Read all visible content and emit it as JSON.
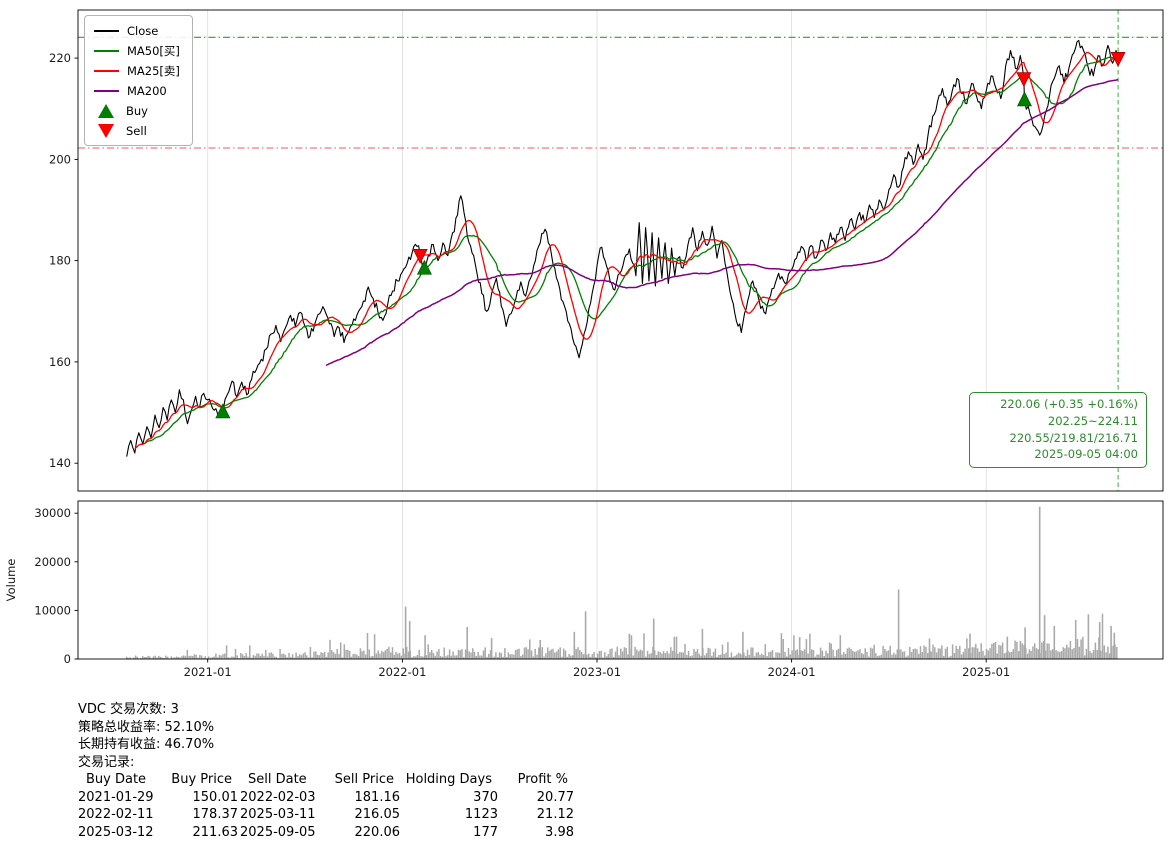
{
  "chart_data": {
    "type": "line",
    "x_unit": "months since 2021-01",
    "axes": {
      "xlim": [
        -8.0,
        58.9
      ],
      "price_ylim": [
        134.5,
        229.5
      ],
      "volume_ylim": [
        0,
        32500
      ],
      "x_ticks": [
        {
          "t": 0,
          "label": "2021-01"
        },
        {
          "t": 12,
          "label": "2022-01"
        },
        {
          "t": 24,
          "label": "2023-01"
        },
        {
          "t": 36,
          "label": "2024-01"
        },
        {
          "t": 48,
          "label": "2025-01"
        }
      ],
      "price_y_ticks": [
        140,
        160,
        180,
        200,
        220
      ],
      "volume_y_ticks": [
        0,
        10000,
        20000,
        30000
      ],
      "volume_ylabel": "Volume",
      "grid": "vertical-only",
      "legend_position": "upper-left"
    },
    "colors": {
      "close": "#000000",
      "ma50": "#008000",
      "ma25": "#ff0000",
      "ma200": "#800080",
      "buy": "#008000",
      "sell": "#ff0000",
      "grid": "#dcdcdc",
      "volume": "#a9a9a9",
      "hline_high": "#2ca02c",
      "hline_low": "#ff5555",
      "vline_last": "#44bb44",
      "annotation": "#2e8b2e"
    },
    "legend": {
      "items": [
        {
          "label": "Close",
          "type": "line",
          "color": "#000000",
          "icon": "close-line-icon"
        },
        {
          "label": "MA50[买]",
          "type": "line",
          "color": "#008000",
          "icon": "ma50-line-icon"
        },
        {
          "label": "MA25[卖]",
          "type": "line",
          "color": "#ff0000",
          "icon": "ma25-line-icon"
        },
        {
          "label": "MA200",
          "type": "line",
          "color": "#800080",
          "icon": "ma200-line-icon"
        },
        {
          "label": "Buy",
          "type": "marker-up",
          "color": "#008000",
          "icon": "buy-marker-icon"
        },
        {
          "label": "Sell",
          "type": "marker-down",
          "color": "#ff0000",
          "icon": "sell-marker-icon"
        }
      ]
    },
    "price": {
      "close_anchors": [
        [
          -5.0,
          141.3
        ],
        [
          -4.75,
          144.5
        ],
        [
          -4.5,
          142.0
        ],
        [
          -4.25,
          146.0
        ],
        [
          -4.0,
          143.8
        ],
        [
          -3.75,
          147.2
        ],
        [
          -3.5,
          145.0
        ],
        [
          -3.25,
          149.5
        ],
        [
          -3.0,
          147.0
        ],
        [
          -2.75,
          151.0
        ],
        [
          -2.5,
          148.5
        ],
        [
          -2.25,
          152.5
        ],
        [
          -2.0,
          150.0
        ],
        [
          -1.75,
          154.5
        ],
        [
          -1.5,
          152.5
        ],
        [
          -1.25,
          147.8
        ],
        [
          -1.0,
          150.5
        ],
        [
          -0.75,
          153.2
        ],
        [
          -0.5,
          151.0
        ],
        [
          -0.25,
          153.8
        ],
        [
          0.0,
          152.5
        ],
        [
          0.3,
          150.8
        ],
        [
          0.6,
          149.8
        ],
        [
          0.93,
          150.0
        ],
        [
          1.2,
          153.5
        ],
        [
          1.5,
          156.2
        ],
        [
          1.8,
          153.0
        ],
        [
          2.1,
          156.0
        ],
        [
          2.4,
          153.5
        ],
        [
          2.7,
          156.5
        ],
        [
          3.0,
          158.5
        ],
        [
          3.3,
          160.5
        ],
        [
          3.6,
          162.5
        ],
        [
          3.9,
          165.5
        ],
        [
          4.2,
          167.2
        ],
        [
          4.5,
          164.0
        ],
        [
          4.8,
          166.8
        ],
        [
          5.1,
          169.2
        ],
        [
          5.4,
          167.0
        ],
        [
          5.7,
          169.8
        ],
        [
          6.0,
          167.0
        ],
        [
          6.3,
          165.0
        ],
        [
          6.6,
          167.5
        ],
        [
          6.9,
          169.5
        ],
        [
          7.2,
          170.3
        ],
        [
          7.5,
          167.5
        ],
        [
          7.8,
          165.0
        ],
        [
          8.1,
          166.8
        ],
        [
          8.4,
          163.8
        ],
        [
          8.7,
          166.0
        ],
        [
          9.0,
          168.5
        ],
        [
          9.3,
          170.0
        ],
        [
          9.6,
          172.0
        ],
        [
          9.9,
          174.8
        ],
        [
          10.2,
          172.5
        ],
        [
          10.5,
          169.8
        ],
        [
          10.8,
          168.2
        ],
        [
          11.1,
          171.5
        ],
        [
          11.4,
          174.0
        ],
        [
          11.7,
          176.0
        ],
        [
          12.0,
          177.8
        ],
        [
          12.3,
          179.5
        ],
        [
          12.6,
          181.5
        ],
        [
          12.9,
          182.8
        ],
        [
          13.1,
          181.2
        ],
        [
          13.36,
          178.4
        ],
        [
          13.6,
          181.0
        ],
        [
          13.9,
          183.2
        ],
        [
          14.2,
          180.0
        ],
        [
          14.5,
          183.5
        ],
        [
          14.8,
          181.0
        ],
        [
          15.1,
          185.5
        ],
        [
          15.4,
          189.0
        ],
        [
          15.6,
          192.8
        ],
        [
          15.8,
          189.5
        ],
        [
          16.0,
          185.0
        ],
        [
          16.3,
          181.5
        ],
        [
          16.6,
          177.5
        ],
        [
          16.9,
          173.5
        ],
        [
          17.2,
          170.0
        ],
        [
          17.5,
          173.5
        ],
        [
          17.8,
          176.5
        ],
        [
          18.1,
          171.0
        ],
        [
          18.4,
          167.0
        ],
        [
          18.7,
          169.5
        ],
        [
          19.0,
          172.5
        ],
        [
          19.3,
          175.8
        ],
        [
          19.6,
          173.0
        ],
        [
          19.9,
          176.5
        ],
        [
          20.2,
          180.0
        ],
        [
          20.5,
          183.5
        ],
        [
          20.8,
          186.2
        ],
        [
          21.1,
          183.0
        ],
        [
          21.4,
          178.5
        ],
        [
          21.7,
          174.5
        ],
        [
          22.0,
          171.0
        ],
        [
          22.3,
          167.5
        ],
        [
          22.6,
          163.5
        ],
        [
          22.9,
          160.8
        ],
        [
          23.2,
          165.5
        ],
        [
          23.5,
          170.5
        ],
        [
          23.8,
          175.0
        ],
        [
          24.0,
          179.0
        ],
        [
          24.2,
          182.5
        ],
        [
          24.5,
          180.0
        ],
        [
          24.8,
          176.0
        ],
        [
          25.1,
          174.2
        ],
        [
          25.4,
          177.5
        ],
        [
          25.7,
          180.5
        ],
        [
          26.0,
          182.3
        ],
        [
          26.2,
          179.5
        ],
        [
          26.4,
          177.0
        ],
        [
          26.6,
          187.5
        ],
        [
          26.8,
          175.5
        ],
        [
          27.0,
          186.5
        ],
        [
          27.2,
          176.0
        ],
        [
          27.4,
          185.5
        ],
        [
          27.6,
          175.0
        ],
        [
          27.8,
          184.5
        ],
        [
          28.0,
          176.5
        ],
        [
          28.2,
          183.5
        ],
        [
          28.4,
          175.5
        ],
        [
          28.6,
          182.5
        ],
        [
          28.8,
          177.0
        ],
        [
          29.0,
          180.5
        ],
        [
          29.3,
          178.5
        ],
        [
          29.6,
          183.0
        ],
        [
          29.9,
          186.5
        ],
        [
          30.2,
          182.0
        ],
        [
          30.5,
          185.8
        ],
        [
          30.8,
          183.0
        ],
        [
          31.1,
          186.8
        ],
        [
          31.4,
          180.5
        ],
        [
          31.7,
          184.0
        ],
        [
          32.0,
          178.0
        ],
        [
          32.3,
          172.5
        ],
        [
          32.6,
          168.0
        ],
        [
          32.9,
          165.8
        ],
        [
          33.2,
          170.5
        ],
        [
          33.6,
          176.0
        ],
        [
          34.0,
          172.0
        ],
        [
          34.4,
          169.5
        ],
        [
          34.8,
          174.5
        ],
        [
          35.2,
          177.5
        ],
        [
          35.6,
          175.5
        ],
        [
          36.0,
          178.2
        ],
        [
          36.3,
          180.5
        ],
        [
          36.6,
          182.8
        ],
        [
          36.9,
          180.0
        ],
        [
          37.2,
          183.0
        ],
        [
          37.5,
          180.5
        ],
        [
          37.8,
          184.0
        ],
        [
          38.1,
          182.0
        ],
        [
          38.4,
          185.5
        ],
        [
          38.7,
          183.5
        ],
        [
          39.0,
          186.5
        ],
        [
          39.3,
          184.0
        ],
        [
          39.6,
          188.0
        ],
        [
          39.9,
          186.0
        ],
        [
          40.2,
          189.5
        ],
        [
          40.5,
          187.5
        ],
        [
          40.8,
          191.0
        ],
        [
          41.1,
          188.5
        ],
        [
          41.4,
          192.0
        ],
        [
          41.7,
          190.0
        ],
        [
          42.0,
          194.0
        ],
        [
          42.3,
          197.0
        ],
        [
          42.6,
          194.5
        ],
        [
          42.9,
          198.5
        ],
        [
          43.2,
          201.5
        ],
        [
          43.5,
          199.0
        ],
        [
          43.8,
          203.0
        ],
        [
          44.1,
          200.0
        ],
        [
          44.4,
          204.5
        ],
        [
          44.7,
          208.5
        ],
        [
          45.0,
          211.5
        ],
        [
          45.3,
          214.0
        ],
        [
          45.6,
          210.5
        ],
        [
          45.9,
          213.5
        ],
        [
          46.2,
          216.0
        ],
        [
          46.5,
          213.0
        ],
        [
          46.8,
          211.0
        ],
        [
          47.1,
          215.0
        ],
        [
          47.4,
          212.5
        ],
        [
          47.7,
          210.0
        ],
        [
          48.0,
          213.5
        ],
        [
          48.3,
          216.5
        ],
        [
          48.6,
          214.0
        ],
        [
          48.9,
          212.0
        ],
        [
          49.2,
          218.5
        ],
        [
          49.5,
          221.5
        ],
        [
          49.8,
          218.0
        ],
        [
          50.1,
          220.5
        ],
        [
          50.32,
          216.05
        ],
        [
          50.36,
          211.63
        ],
        [
          50.7,
          209.0
        ],
        [
          51.0,
          206.5
        ],
        [
          51.3,
          204.8
        ],
        [
          51.6,
          208.5
        ],
        [
          51.9,
          212.5
        ],
        [
          52.2,
          216.0
        ],
        [
          52.5,
          218.5
        ],
        [
          52.8,
          215.0
        ],
        [
          53.1,
          218.0
        ],
        [
          53.4,
          221.0
        ],
        [
          53.7,
          223.5
        ],
        [
          54.0,
          221.5
        ],
        [
          54.3,
          218.0
        ],
        [
          54.6,
          216.5
        ],
        [
          54.9,
          220.5
        ],
        [
          55.2,
          218.5
        ],
        [
          55.5,
          222.5
        ],
        [
          55.8,
          219.0
        ],
        [
          56.0,
          221.5
        ],
        [
          56.13,
          220.06
        ]
      ],
      "ma": [
        {
          "label": "MA50[买]",
          "window_months": 2.3,
          "color": "#008000",
          "min_t": -4.2,
          "width": 1.3
        },
        {
          "label": "MA25[卖]",
          "window_months": 1.15,
          "color": "#ff0000",
          "min_t": -4.6,
          "width": 1.3
        },
        {
          "label": "MA200",
          "window_months": 9.6,
          "color": "#800080",
          "min_t": 7.3,
          "width": 1.5
        }
      ]
    },
    "lines": {
      "hlines": [
        {
          "y": 224.11,
          "color": "#2ca02c",
          "style": "dashdot"
        },
        {
          "y": 202.25,
          "color": "#ff5555",
          "style": "dashdot"
        }
      ],
      "vlines": [
        {
          "t": 56.13,
          "color": "#44bb44",
          "style": "dashed"
        }
      ]
    },
    "markers": [
      {
        "type": "buy",
        "date": "2021-01-29",
        "t": 0.93,
        "price": 150.01
      },
      {
        "type": "sell",
        "date": "2022-02-03",
        "t": 13.1,
        "price": 181.16
      },
      {
        "type": "buy",
        "date": "2022-02-11",
        "t": 13.36,
        "price": 178.37
      },
      {
        "type": "sell",
        "date": "2025-03-11",
        "t": 50.32,
        "price": 216.05
      },
      {
        "type": "buy",
        "date": "2025-03-12",
        "t": 50.36,
        "price": 211.63
      },
      {
        "type": "sell",
        "date": "2025-09-05",
        "t": 56.13,
        "price": 220.06
      }
    ],
    "annotation": {
      "lines": [
        "220.06 (+0.35 +0.16%)",
        "202.25~224.11",
        "220.55/219.81/216.71",
        "2025-09-05 04:00"
      ]
    },
    "volume": {
      "ylabel": "Volume",
      "base_anchors": [
        [
          -5,
          260
        ],
        [
          -2,
          320
        ],
        [
          0,
          520
        ],
        [
          6,
          650
        ],
        [
          12,
          1250
        ],
        [
          13,
          1000
        ],
        [
          24,
          1150
        ],
        [
          36,
          1050
        ],
        [
          44,
          1250
        ],
        [
          48,
          1500
        ],
        [
          52,
          1900
        ],
        [
          56.13,
          2100
        ]
      ],
      "spikes": [
        [
          12.2,
          10800
        ],
        [
          12.45,
          7800
        ],
        [
          13.4,
          4900
        ],
        [
          16.0,
          6600
        ],
        [
          17.5,
          4300
        ],
        [
          20.5,
          3900
        ],
        [
          22.6,
          5600
        ],
        [
          23.3,
          9800
        ],
        [
          26.0,
          5200
        ],
        [
          27.5,
          8300
        ],
        [
          28.9,
          4600
        ],
        [
          30.5,
          6200
        ],
        [
          33.0,
          5600
        ],
        [
          36.5,
          4500
        ],
        [
          39.0,
          3800
        ],
        [
          42.6,
          14300
        ],
        [
          44.5,
          4200
        ],
        [
          47.0,
          5200
        ],
        [
          49.3,
          4600
        ],
        [
          50.4,
          6500
        ],
        [
          51.3,
          31300
        ],
        [
          51.6,
          9000
        ],
        [
          52.2,
          6800
        ],
        [
          54.3,
          9200
        ],
        [
          55.0,
          7600
        ],
        [
          55.7,
          6800
        ],
        [
          55.9,
          5400
        ]
      ]
    }
  },
  "stats": {
    "lines": [
      "VDC 交易次数: 3",
      "策略总收益率: 52.10%",
      "长期持有收益: 46.70%",
      "交易记录:"
    ]
  },
  "trades": {
    "columns": [
      "Buy Date",
      "Buy Price",
      "Sell Date",
      "Sell Price",
      "Holding Days",
      "Profit %"
    ],
    "rows": [
      [
        "2021-01-29",
        "150.01",
        "2022-02-03",
        "181.16",
        "370",
        "20.77"
      ],
      [
        "2022-02-11",
        "178.37",
        "2025-03-11",
        "216.05",
        "1123",
        "21.12"
      ],
      [
        "2025-03-12",
        "211.63",
        "2025-09-05",
        "220.06",
        "177",
        "3.98"
      ]
    ]
  }
}
